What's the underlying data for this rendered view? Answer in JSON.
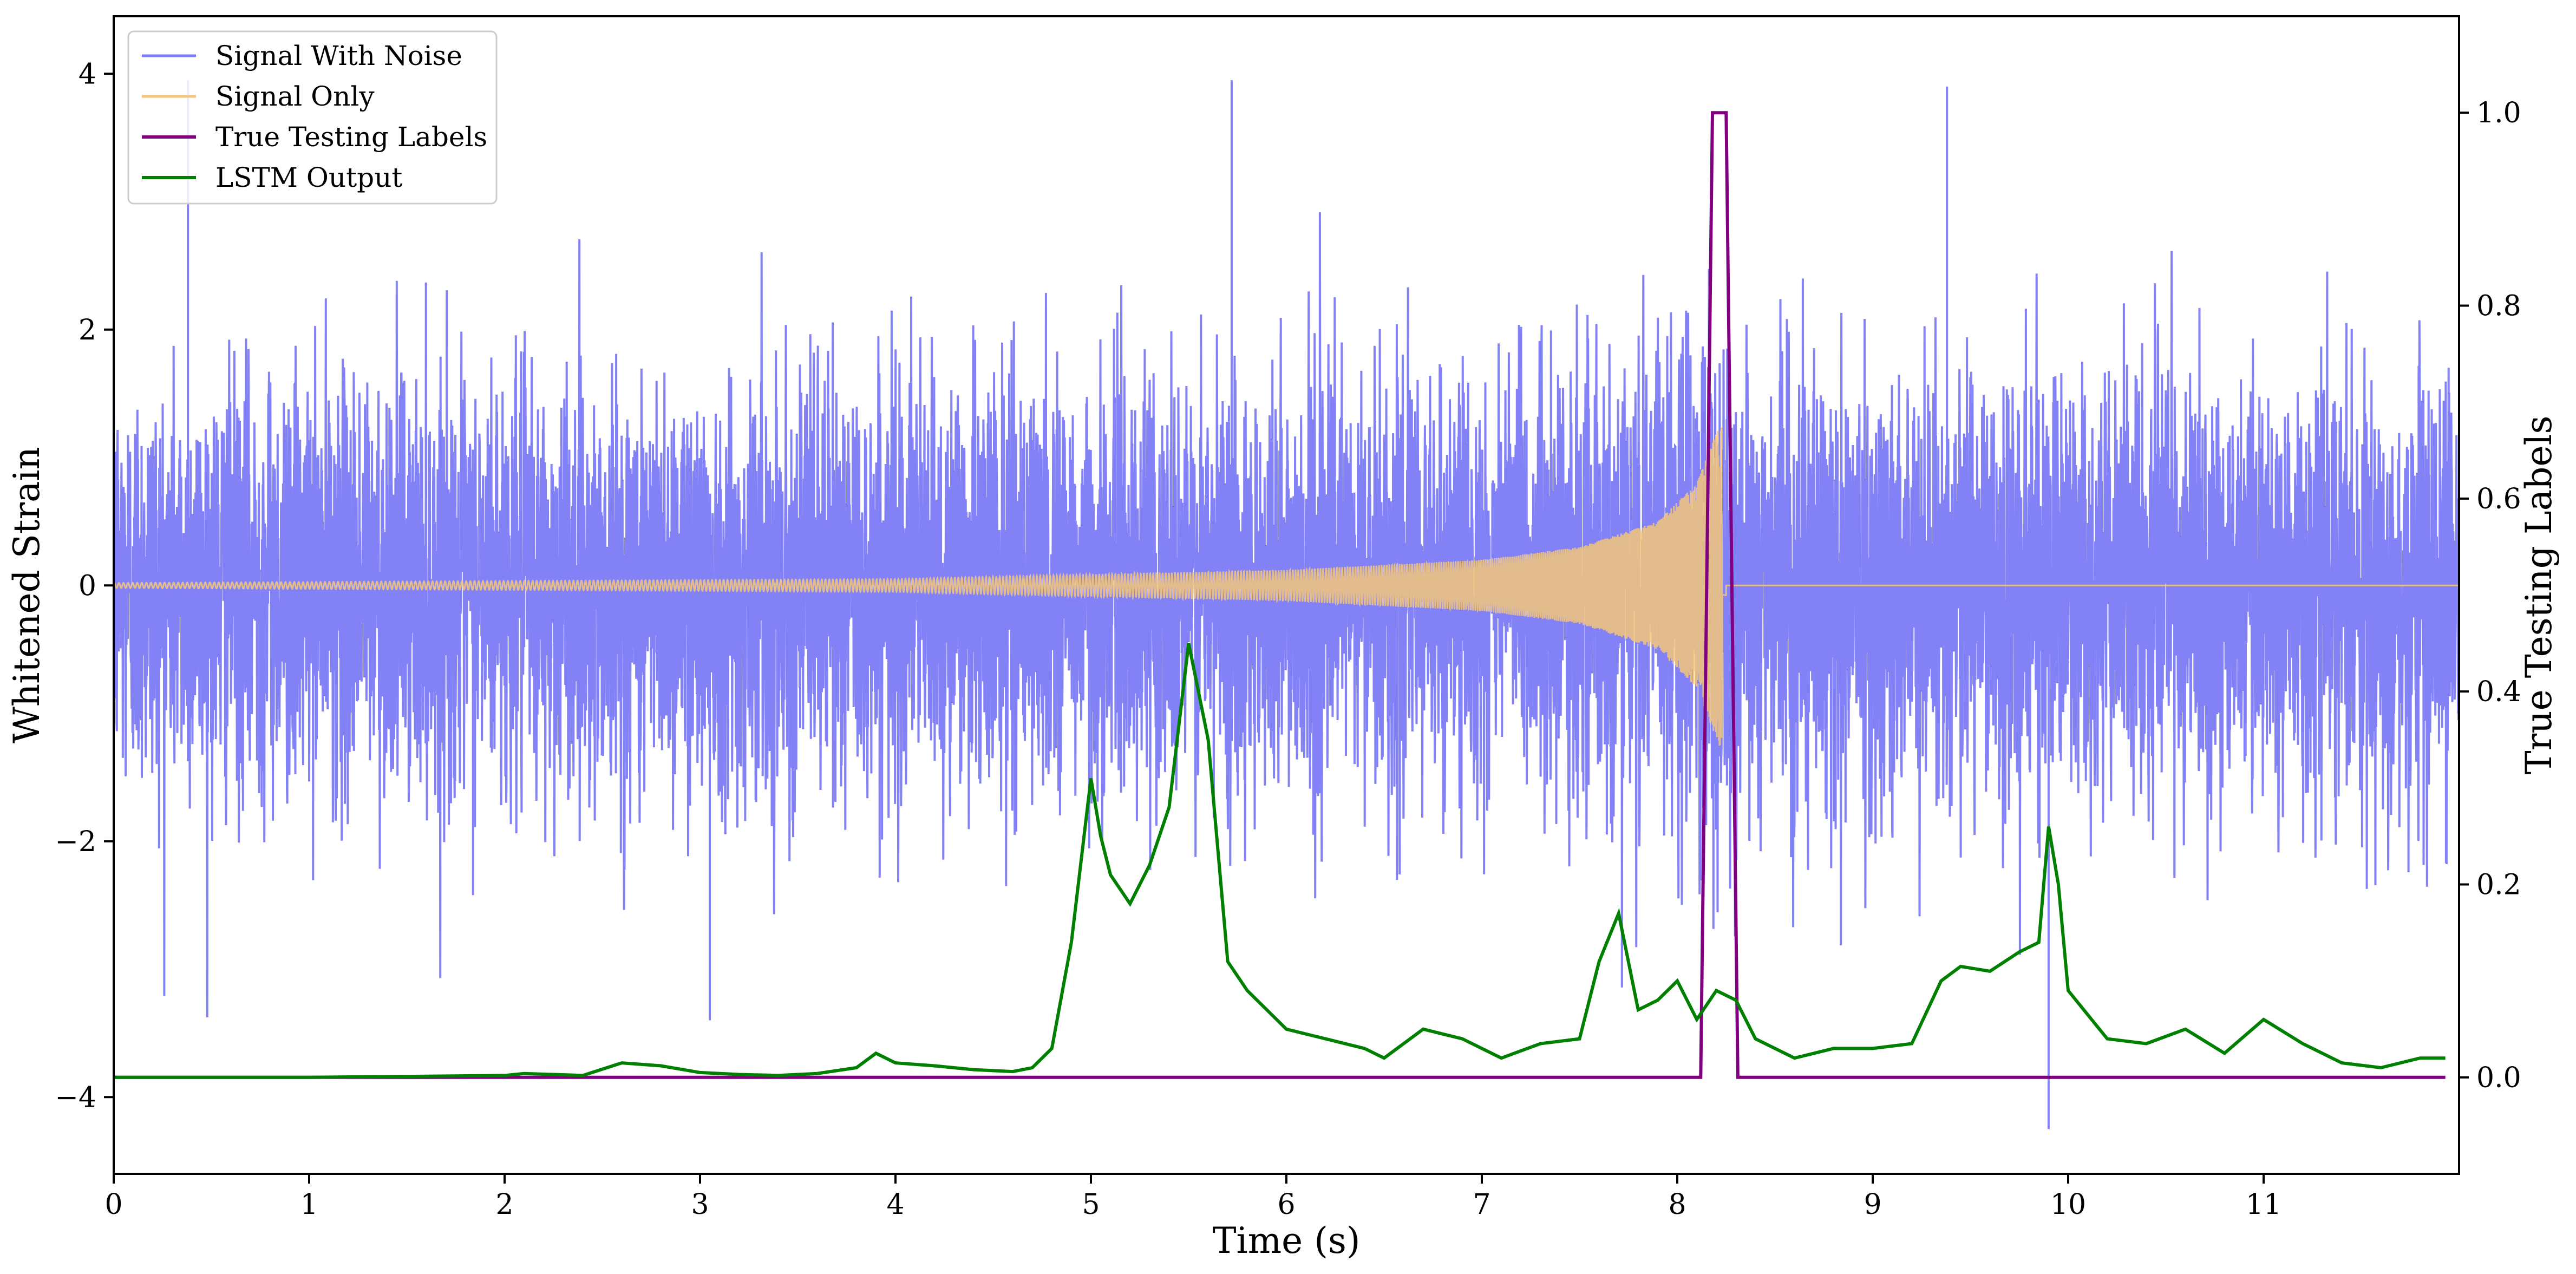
{
  "chart_data": {
    "type": "line",
    "title": "",
    "xlabel": "Time (s)",
    "ylabel": "Whitened Strain",
    "y2label": "True Testing Labels",
    "xlim": [
      0,
      12
    ],
    "ylim": [
      -4.6,
      4.45
    ],
    "y2lim": [
      -0.1,
      1.1
    ],
    "xticks": [
      "0",
      "1",
      "2",
      "3",
      "4",
      "5",
      "6",
      "7",
      "8",
      "9",
      "10",
      "11"
    ],
    "yticks": [
      "−4",
      "−2",
      "0",
      "2",
      "4"
    ],
    "y2ticks": [
      "0.0",
      "0.2",
      "0.4",
      "0.6",
      "0.8",
      "1.0"
    ],
    "grid": false,
    "legend": {
      "position": "top-left",
      "entries": [
        "Signal With Noise",
        "Signal Only",
        "True Testing Labels",
        "LSTM Output"
      ]
    },
    "series": [
      {
        "name": "Signal With Noise",
        "axis": "left",
        "color": "#7b7bf5",
        "description": "dense white noise, std ~0.8",
        "noise_std": 0.8,
        "x_range": [
          0,
          12
        ],
        "notable_peaks": [
          [
            0.38,
            3.95
          ],
          [
            5.72,
            3.95
          ],
          [
            9.38,
            3.9
          ],
          [
            9.9,
            -4.25
          ],
          [
            3.05,
            -3.4
          ]
        ]
      },
      {
        "name": "Signal Only",
        "axis": "left",
        "color": "#f5c77a",
        "description": "chirp growing in amplitude until merger at ~8.25 s",
        "amplitude_points": [
          [
            0,
            0.02
          ],
          [
            4,
            0.05
          ],
          [
            6,
            0.12
          ],
          [
            7,
            0.2
          ],
          [
            7.5,
            0.3
          ],
          [
            7.9,
            0.5
          ],
          [
            8.1,
            0.8
          ],
          [
            8.25,
            1.4
          ]
        ]
      },
      {
        "name": "True Testing Labels",
        "axis": "right",
        "color": "#800080",
        "x": [
          0,
          8.12,
          8.18,
          8.25,
          8.31,
          11.93
        ],
        "y": [
          0.0,
          0.0,
          1.0,
          1.0,
          0.0,
          0.0
        ]
      },
      {
        "name": "LSTM Output",
        "axis": "right",
        "color": "#008000",
        "x": [
          0.0,
          1.0,
          2.0,
          2.1,
          2.4,
          2.6,
          2.8,
          3.0,
          3.2,
          3.4,
          3.6,
          3.8,
          3.9,
          4.0,
          4.2,
          4.4,
          4.6,
          4.7,
          4.8,
          4.9,
          5.0,
          5.05,
          5.1,
          5.2,
          5.3,
          5.4,
          5.5,
          5.6,
          5.7,
          5.8,
          6.0,
          6.2,
          6.4,
          6.5,
          6.7,
          6.9,
          7.1,
          7.3,
          7.5,
          7.6,
          7.7,
          7.8,
          7.9,
          8.0,
          8.1,
          8.2,
          8.3,
          8.4,
          8.6,
          8.8,
          9.0,
          9.2,
          9.35,
          9.45,
          9.6,
          9.75,
          9.85,
          9.9,
          9.95,
          10.0,
          10.2,
          10.4,
          10.6,
          10.8,
          11.0,
          11.2,
          11.4,
          11.6,
          11.8,
          11.93
        ],
        "y": [
          0.0,
          0.0,
          0.002,
          0.004,
          0.002,
          0.015,
          0.012,
          0.005,
          0.003,
          0.002,
          0.004,
          0.01,
          0.025,
          0.015,
          0.012,
          0.008,
          0.006,
          0.01,
          0.03,
          0.14,
          0.31,
          0.25,
          0.21,
          0.18,
          0.22,
          0.28,
          0.45,
          0.35,
          0.12,
          0.09,
          0.05,
          0.04,
          0.03,
          0.02,
          0.05,
          0.04,
          0.02,
          0.035,
          0.04,
          0.12,
          0.17,
          0.07,
          0.08,
          0.1,
          0.06,
          0.09,
          0.08,
          0.04,
          0.02,
          0.03,
          0.03,
          0.035,
          0.1,
          0.115,
          0.11,
          0.13,
          0.14,
          0.26,
          0.2,
          0.09,
          0.04,
          0.035,
          0.05,
          0.025,
          0.06,
          0.035,
          0.015,
          0.01,
          0.02,
          0.02
        ]
      }
    ]
  }
}
